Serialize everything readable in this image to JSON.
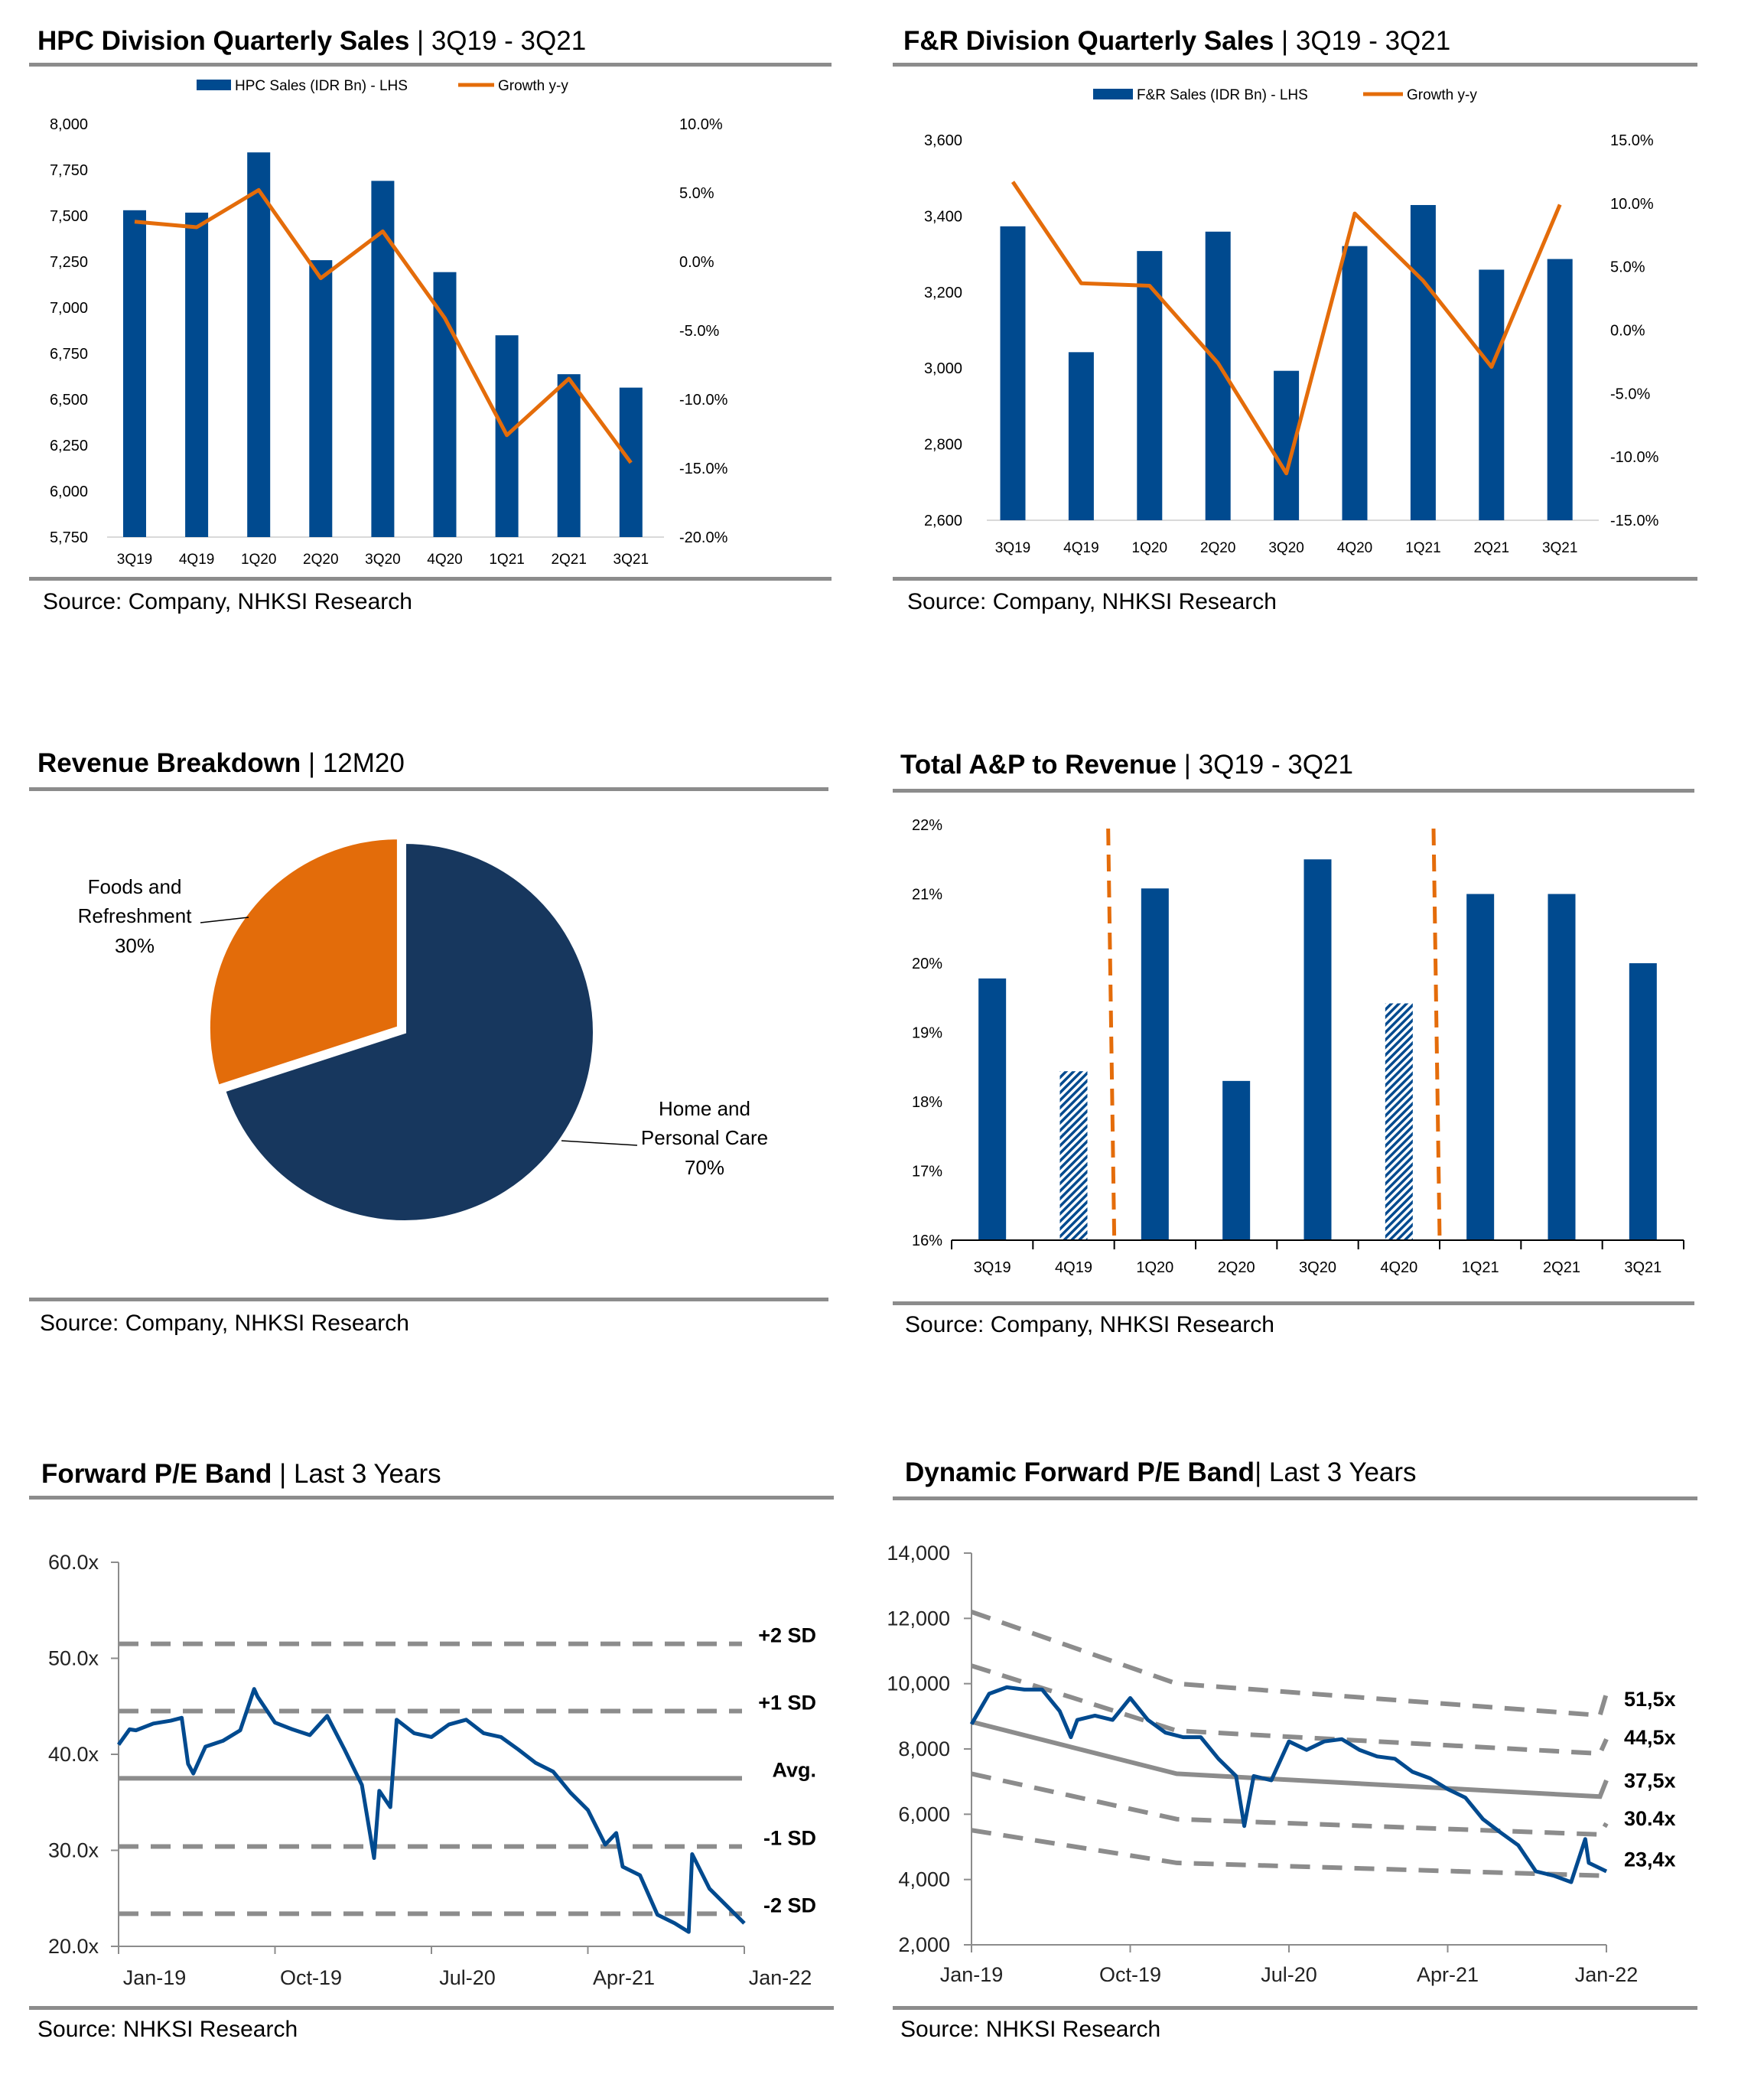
{
  "panels": {
    "hpc": {
      "title_bold": "HPC Division Quarterly Sales",
      "title_rest": " | 3Q19 - 3Q21",
      "source": "Source: Company, NHKSI Research"
    },
    "fr": {
      "title_bold": "F&R Division Quarterly Sales",
      "title_rest": " | 3Q19 - 3Q21",
      "source": "Source: Company, NHKSI Research"
    },
    "rev": {
      "title_bold": "Revenue Breakdown",
      "title_rest": " | 12M20",
      "source": "Source: Company, NHKSI Research"
    },
    "ap": {
      "title_bold": "Total A&P to Revenue",
      "title_rest": " | 3Q19 - 3Q21",
      "source": "Source: Company, NHKSI Research"
    },
    "pe": {
      "title_bold": "Forward P/E Band",
      "title_rest": " | Last 3 Years",
      "source": "Source: NHKSI Research"
    },
    "dpe": {
      "title_bold": "Dynamic Forward P/E Band",
      "title_rest": "| Last 3 Years",
      "source": "Source: NHKSI Research"
    }
  },
  "colors": {
    "bar": "#004a8f",
    "line": "#e46c0a",
    "pie_navy": "#17375e",
    "pie_orange": "#e36c0a",
    "band": "#8c8c8c",
    "rule": "#8c8c8c"
  },
  "chart_data": [
    {
      "type": "bar+line",
      "categories": [
        "3Q19",
        "4Q19",
        "1Q20",
        "2Q20",
        "3Q20",
        "4Q20",
        "1Q21",
        "2Q21",
        "3Q21"
      ],
      "series": [
        {
          "name": "HPC Sales (IDR Bn) - LHS",
          "axis": "left",
          "type": "bar",
          "values": [
            7530,
            7517,
            7845,
            7258,
            7690,
            7193,
            6849,
            6637,
            6564
          ]
        },
        {
          "name": "Growth y-y",
          "axis": "right",
          "type": "line",
          "values": [
            2.9,
            2.5,
            5.2,
            -1.2,
            2.2,
            -4.1,
            -12.6,
            -8.5,
            -14.6
          ]
        }
      ],
      "ylim_left": [
        5750,
        8000
      ],
      "ylim_right": [
        -20,
        10
      ],
      "yticks_left": [
        "5,750",
        "6,000",
        "6,250",
        "6,500",
        "6,750",
        "7,000",
        "7,250",
        "7,500",
        "7,750",
        "8,000"
      ],
      "yticks_right": [
        "-20.0%",
        "-15.0%",
        "-10.0%",
        "-5.0%",
        "0.0%",
        "5.0%",
        "10.0%"
      ],
      "legend": "top"
    },
    {
      "type": "bar+line",
      "categories": [
        "3Q19",
        "4Q19",
        "1Q20",
        "2Q20",
        "3Q20",
        "4Q20",
        "1Q21",
        "2Q21",
        "3Q21"
      ],
      "series": [
        {
          "name": "F&R Sales (IDR Bn) - LHS",
          "axis": "left",
          "type": "bar",
          "values": [
            3373,
            3042,
            3308,
            3359,
            2993,
            3321,
            3429,
            3259,
            3287
          ]
        },
        {
          "name": "Growth y-y",
          "axis": "right",
          "type": "line",
          "values": [
            11.7,
            3.7,
            3.5,
            -2.6,
            -11.3,
            9.2,
            3.9,
            -2.9,
            9.9
          ]
        }
      ],
      "ylim_left": [
        2600,
        3600
      ],
      "ylim_right": [
        -15,
        15
      ],
      "yticks_left": [
        "2,600",
        "2,800",
        "3,000",
        "3,200",
        "3,400",
        "3,600"
      ],
      "yticks_right": [
        "-15.0%",
        "-10.0%",
        "-5.0%",
        "0.0%",
        "5.0%",
        "10.0%",
        "15.0%"
      ],
      "legend": "top"
    },
    {
      "type": "pie",
      "slices": [
        {
          "label_lines": [
            "Home and",
            "Personal Care"
          ],
          "pct_label": "70%",
          "value": 70
        },
        {
          "label_lines": [
            "Foods and",
            "Refreshment"
          ],
          "pct_label": "30%",
          "value": 30
        }
      ]
    },
    {
      "type": "bar",
      "categories": [
        "3Q19",
        "4Q19",
        "1Q20",
        "2Q20",
        "3Q20",
        "4Q20",
        "1Q21",
        "2Q21",
        "3Q21"
      ],
      "values": [
        19.78,
        18.44,
        21.08,
        18.3,
        21.5,
        19.42,
        21.0,
        21.0,
        20.0
      ],
      "hatched": [
        false,
        true,
        false,
        false,
        false,
        true,
        false,
        false,
        false
      ],
      "dividers_after": [
        "4Q19",
        "4Q20"
      ],
      "ylim": [
        16,
        22
      ],
      "yticks": [
        "16%",
        "17%",
        "18%",
        "19%",
        "20%",
        "21%",
        "22%"
      ]
    },
    {
      "type": "line",
      "ylim": [
        20,
        60
      ],
      "yticks": [
        "20.0x",
        "30.0x",
        "40.0x",
        "50.0x",
        "60.0x"
      ],
      "xlim": [
        "2019-01",
        "2022-01"
      ],
      "xticks": [
        "Jan-19",
        "Oct-19",
        "Jul-20",
        "Apr-21",
        "Jan-22"
      ],
      "bands": [
        {
          "label": "+2 SD",
          "value": 51.5,
          "style": "dashed"
        },
        {
          "label": "+1 SD",
          "value": 44.5,
          "style": "dashed"
        },
        {
          "label": "Avg.",
          "value": 37.5,
          "style": "solid"
        },
        {
          "label": "-1 SD",
          "value": 30.4,
          "style": "dashed"
        },
        {
          "label": "-2 SD",
          "value": 23.4,
          "style": "dashed"
        }
      ],
      "series": [
        [
          [
            "2019-01",
            41.0
          ],
          [
            "2019-01-20",
            42.6
          ],
          [
            "2019-02",
            42.5
          ],
          [
            "2019-03",
            43.2
          ],
          [
            "2019-04",
            43.5
          ],
          [
            "2019-04-20",
            43.8
          ],
          [
            "2019-05",
            39.0
          ],
          [
            "2019-05-10",
            38.0
          ],
          [
            "2019-06",
            40.8
          ],
          [
            "2019-07",
            41.4
          ],
          [
            "2019-08",
            42.5
          ],
          [
            "2019-08-25",
            46.8
          ],
          [
            "2019-09",
            46.0
          ],
          [
            "2019-10",
            43.3
          ],
          [
            "2019-11",
            42.6
          ],
          [
            "2019-12",
            42.0
          ],
          [
            "2020-01",
            44.0
          ],
          [
            "2020-02",
            40.5
          ],
          [
            "2020-03",
            36.8
          ],
          [
            "2020-03-22",
            29.2
          ],
          [
            "2020-04",
            36.2
          ],
          [
            "2020-04-20",
            34.5
          ],
          [
            "2020-05",
            43.6
          ],
          [
            "2020-06",
            42.2
          ],
          [
            "2020-07",
            41.8
          ],
          [
            "2020-08",
            43.1
          ],
          [
            "2020-09",
            43.6
          ],
          [
            "2020-10",
            42.2
          ],
          [
            "2020-11",
            41.8
          ],
          [
            "2020-12",
            40.5
          ],
          [
            "2021-01",
            39.1
          ],
          [
            "2021-02",
            38.2
          ],
          [
            "2021-03",
            36.0
          ],
          [
            "2021-04",
            34.2
          ],
          [
            "2021-05",
            30.6
          ],
          [
            "2021-05-20",
            31.8
          ],
          [
            "2021-06",
            28.3
          ],
          [
            "2021-07",
            27.4
          ],
          [
            "2021-08",
            23.3
          ],
          [
            "2021-09",
            22.4
          ],
          [
            "2021-09-25",
            21.5
          ],
          [
            "2021-10",
            29.6
          ],
          [
            "2021-11",
            26.0
          ],
          [
            "2021-12",
            24.2
          ],
          [
            "2022-01",
            22.4
          ]
        ]
      ]
    },
    {
      "type": "line",
      "ylim": [
        2000,
        14000
      ],
      "yticks": [
        "2,000",
        "4,000",
        "6,000",
        "8,000",
        "10,000",
        "12,000",
        "14,000"
      ],
      "xlim": [
        "2019-01",
        "2022-01"
      ],
      "xticks": [
        "Jan-19",
        "Oct-19",
        "Jul-20",
        "Apr-21",
        "Jan-22"
      ],
      "bands": [
        {
          "label": "51,5x",
          "style": "dashed",
          "points": [
            [
              "2019-01",
              12200
            ],
            [
              "2019-12-20",
              10000
            ],
            [
              "2021-12-20",
              9030
            ],
            [
              "2022-01",
              9700
            ]
          ]
        },
        {
          "label": "44,5x",
          "style": "dashed",
          "points": [
            [
              "2019-01",
              10550
            ],
            [
              "2019-12-20",
              8560
            ],
            [
              "2021-12-20",
              7860
            ],
            [
              "2022-01",
              8300
            ]
          ]
        },
        {
          "label": "37,5x",
          "style": "solid",
          "points": [
            [
              "2019-01",
              8830
            ],
            [
              "2019-12-20",
              7240
            ],
            [
              "2021-12-20",
              6540
            ],
            [
              "2022-01",
              7040
            ]
          ]
        },
        {
          "label": "30.4x",
          "style": "dashed",
          "points": [
            [
              "2019-01",
              7240
            ],
            [
              "2019-12-20",
              5850
            ],
            [
              "2021-12-20",
              5380
            ],
            [
              "2022-01",
              5720
            ]
          ]
        },
        {
          "label": "23,4x",
          "style": "dashed",
          "points": [
            [
              "2019-01",
              5510
            ],
            [
              "2019-12-20",
              4510
            ],
            [
              "2021-12-20",
              4120
            ],
            [
              "2022-01",
              4150
            ]
          ]
        }
      ],
      "series": [
        [
          [
            "2019-01",
            8760
          ],
          [
            "2019-02",
            9690
          ],
          [
            "2019-03",
            9890
          ],
          [
            "2019-04",
            9820
          ],
          [
            "2019-05",
            9820
          ],
          [
            "2019-06",
            9160
          ],
          [
            "2019-06-20",
            8360
          ],
          [
            "2019-07",
            8890
          ],
          [
            "2019-08",
            9020
          ],
          [
            "2019-09",
            8890
          ],
          [
            "2019-10",
            9560
          ],
          [
            "2019-11",
            8890
          ],
          [
            "2019-12",
            8500
          ],
          [
            "2020-01",
            8360
          ],
          [
            "2020-02",
            8360
          ],
          [
            "2020-03",
            7700
          ],
          [
            "2020-04",
            7170
          ],
          [
            "2020-04-15",
            5640
          ],
          [
            "2020-05",
            7170
          ],
          [
            "2020-06",
            7040
          ],
          [
            "2020-07",
            8230
          ],
          [
            "2020-08",
            7970
          ],
          [
            "2020-09",
            8230
          ],
          [
            "2020-10",
            8300
          ],
          [
            "2020-11",
            7970
          ],
          [
            "2020-12",
            7770
          ],
          [
            "2021-01",
            7700
          ],
          [
            "2021-02",
            7300
          ],
          [
            "2021-03",
            7100
          ],
          [
            "2021-04",
            6770
          ],
          [
            "2021-05",
            6510
          ],
          [
            "2021-06",
            5850
          ],
          [
            "2021-07",
            5440
          ],
          [
            "2021-08",
            5050
          ],
          [
            "2021-09",
            4250
          ],
          [
            "2021-10",
            4120
          ],
          [
            "2021-11",
            3920
          ],
          [
            "2021-11-25",
            5240
          ],
          [
            "2021-12",
            4510
          ],
          [
            "2022-01",
            4250
          ]
        ]
      ]
    }
  ]
}
